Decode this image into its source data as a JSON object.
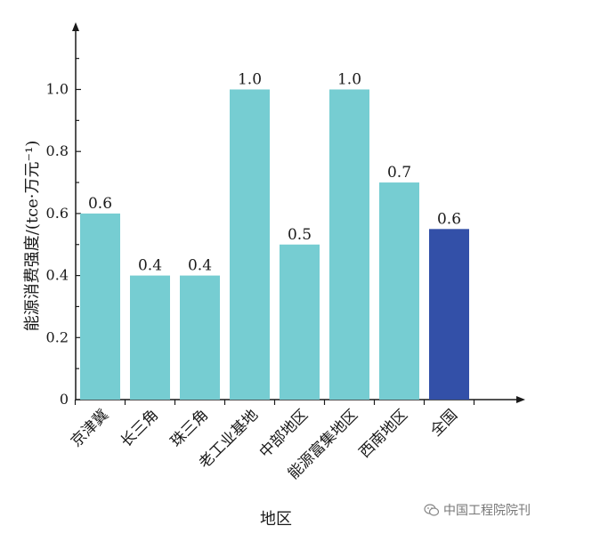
{
  "chart_data": {
    "type": "bar",
    "title": "",
    "xlabel": "地区",
    "ylabel": "能源消费强度/(tce·万元⁻¹)",
    "categories": [
      "京津冀",
      "长三角",
      "珠三角",
      "老工业基地",
      "中部地区",
      "能源富集地区",
      "西南地区",
      "全国"
    ],
    "values": [
      0.6,
      0.4,
      0.4,
      1.0,
      0.5,
      1.0,
      0.7,
      0.55
    ],
    "value_labels": [
      "0.6",
      "0.4",
      "0.4",
      "1.0",
      "0.5",
      "1.0",
      "0.7",
      "0.6"
    ],
    "ylim": [
      0,
      1.2
    ],
    "yticks": [
      "0",
      "0.2",
      "0.4",
      "0.6",
      "0.8",
      "1.0"
    ],
    "grid": false,
    "colors": {
      "default_bar": "#76cdd2",
      "highlight_bar": "#3350a8",
      "axis": "#1a1a1a"
    },
    "highlight_index": 7
  },
  "watermark": {
    "icon": "wechat-icon",
    "text": "中国工程院院刊"
  }
}
